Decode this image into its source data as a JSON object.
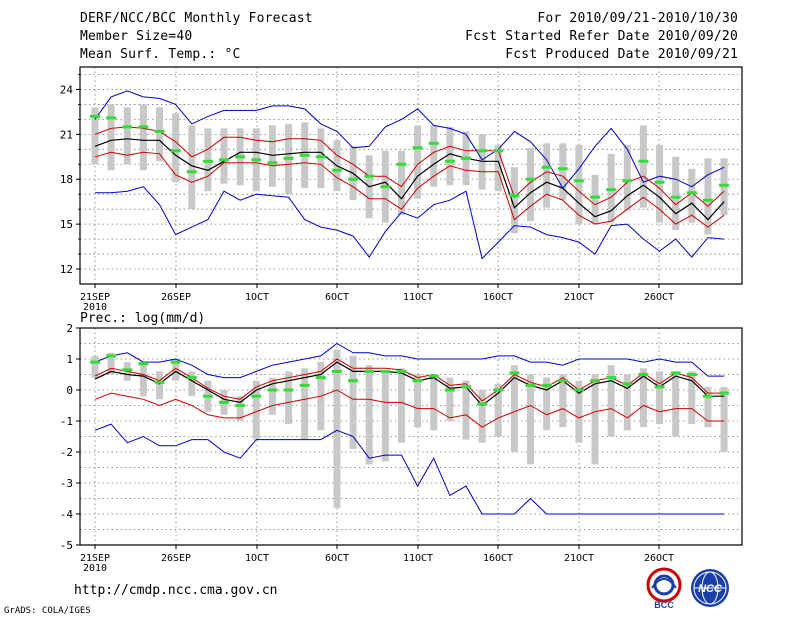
{
  "header": {
    "title": "DERF/NCC/BCC Monthly Forecast",
    "member_size": "Member Size=40",
    "variable": "Mean Surf. Temp.: °C",
    "forecast_period": "For 2010/09/21-2010/10/30",
    "started_refer": "Fcst Started Refer Date 2010/09/20",
    "produced": "Fcst Produced Date 2010/09/21"
  },
  "footer": {
    "url": "http://cmdp.ncc.cma.gov.cn",
    "grads": "GrADS: COLA/IGES",
    "logo_bcc": "BCC",
    "logo_ncc": "NCC"
  },
  "colors": {
    "spread": "#0000cc",
    "mean": "#000000",
    "stdband": "#cc0000",
    "range_bar": "#c8c8c8",
    "marker": "#33dd33"
  },
  "x_axis_labels": [
    "21SEP",
    "26SEP",
    "1OCT",
    "6OCT",
    "11OCT",
    "16OCT",
    "21OCT",
    "26OCT"
  ],
  "x_axis_year": "2010",
  "chart_data": [
    {
      "type": "line",
      "name": "temperature",
      "ylabel": "Mean Surf. Temp.: °C",
      "ylim": [
        11,
        25.5
      ],
      "yticks": [
        12,
        15,
        18,
        21,
        24
      ],
      "x": [
        1,
        2,
        3,
        4,
        5,
        6,
        7,
        8,
        9,
        10,
        11,
        12,
        13,
        14,
        15,
        16,
        17,
        18,
        19,
        20,
        21,
        22,
        23,
        24,
        25,
        26,
        27,
        28,
        29,
        30,
        31,
        32,
        33,
        34,
        35,
        36,
        37,
        38,
        39,
        40
      ],
      "series": [
        {
          "name": "max",
          "values": [
            17.1,
            17.1,
            17.2,
            17.5,
            16.3,
            14.3,
            14.8,
            15.3,
            17.2,
            16.6,
            17.0,
            16.9,
            16.8,
            15.3,
            14.8,
            14.6,
            14.2,
            12.8,
            14.5,
            15.8,
            15.4,
            16.3,
            16.6,
            17.2,
            12.7,
            13.8,
            14.9,
            14.8,
            14.3,
            14.1,
            13.8,
            13.0,
            14.9,
            15.0,
            14.0,
            13.2,
            14.0,
            12.8,
            14.1,
            14.0
          ]
        },
        {
          "name": "min",
          "values": [
            22.0,
            23.5,
            23.9,
            23.5,
            23.4,
            23.0,
            21.7,
            22.2,
            22.6,
            22.6,
            22.6,
            22.9,
            22.9,
            22.7,
            21.7,
            21.2,
            20.1,
            20.2,
            21.5,
            22.0,
            22.7,
            21.6,
            21.4,
            21.0,
            19.3,
            20.0,
            21.2,
            20.5,
            19.3,
            17.4,
            18.7,
            20.2,
            21.4,
            20.0,
            17.8,
            18.2,
            18.0,
            17.5,
            18.3,
            18.8
          ]
        },
        {
          "name": "mean",
          "values": [
            20.2,
            20.6,
            20.7,
            20.6,
            20.6,
            19.6,
            18.9,
            18.6,
            19.2,
            19.8,
            19.8,
            19.6,
            19.7,
            19.8,
            19.8,
            18.9,
            18.4,
            17.5,
            17.8,
            16.7,
            18.2,
            19.0,
            19.7,
            19.4,
            19.2,
            19.2,
            16.1,
            17.1,
            17.8,
            17.4,
            16.4,
            15.5,
            15.9,
            16.9,
            17.6,
            16.8,
            15.7,
            16.4,
            15.3,
            16.5
          ]
        },
        {
          "name": "upper",
          "values": [
            21.0,
            21.4,
            21.5,
            21.4,
            21.2,
            20.5,
            19.5,
            20.0,
            20.8,
            20.8,
            20.6,
            20.5,
            20.7,
            20.7,
            20.6,
            19.6,
            19.0,
            18.2,
            18.2,
            17.5,
            19.0,
            19.8,
            20.2,
            19.9,
            19.9,
            19.9,
            16.8,
            17.8,
            18.5,
            18.2,
            17.2,
            16.3,
            16.8,
            17.8,
            18.2,
            17.4,
            16.3,
            17.1,
            16.2,
            17.2
          ]
        },
        {
          "name": "lower",
          "values": [
            19.5,
            19.8,
            19.6,
            19.8,
            19.7,
            18.3,
            17.8,
            18.2,
            19.1,
            19.1,
            19.1,
            18.9,
            19.0,
            19.1,
            19.0,
            18.1,
            17.5,
            16.7,
            16.7,
            16.0,
            17.4,
            18.2,
            18.9,
            18.6,
            18.5,
            18.5,
            15.3,
            16.2,
            17.0,
            16.6,
            15.6,
            15.0,
            15.2,
            16.0,
            16.8,
            16.0,
            15.0,
            15.6,
            14.8,
            15.6
          ]
        },
        {
          "name": "bar_high",
          "values": [
            22.8,
            23.0,
            22.8,
            23.0,
            22.8,
            22.4,
            21.6,
            21.4,
            21.4,
            21.4,
            21.4,
            21.6,
            21.7,
            21.8,
            21.4,
            20.6,
            20.2,
            19.6,
            19.9,
            19.9,
            21.6,
            21.6,
            21.5,
            21.2,
            21.0,
            20.3,
            18.8,
            20.1,
            20.4,
            20.4,
            20.3,
            18.3,
            19.7,
            20.3,
            21.6,
            20.3,
            19.5,
            18.7,
            19.4,
            19.4
          ]
        },
        {
          "name": "bar_low",
          "values": [
            19.0,
            18.6,
            19.0,
            18.6,
            19.2,
            17.8,
            16.0,
            17.2,
            17.7,
            17.6,
            17.2,
            17.5,
            17.0,
            17.4,
            17.4,
            17.2,
            16.6,
            15.4,
            15.1,
            15.6,
            16.7,
            17.5,
            17.6,
            17.6,
            17.3,
            17.2,
            14.4,
            15.2,
            16.1,
            16.6,
            15.0,
            15.0,
            15.1,
            15.9,
            16.1,
            15.1,
            14.6,
            15.1,
            14.3,
            15.6
          ]
        },
        {
          "name": "marker",
          "values": [
            22.2,
            22.1,
            21.5,
            21.5,
            21.2,
            19.9,
            18.5,
            19.2,
            19.3,
            19.5,
            19.3,
            19.1,
            19.4,
            19.6,
            19.5,
            18.6,
            18.0,
            18.2,
            17.5,
            19.0,
            20.1,
            20.4,
            19.2,
            19.4,
            19.9,
            19.9,
            16.9,
            18.0,
            18.8,
            18.7,
            17.9,
            16.8,
            17.3,
            17.9,
            19.2,
            17.8,
            16.8,
            17.1,
            16.6,
            17.6
          ]
        }
      ]
    },
    {
      "type": "line",
      "name": "precipitation",
      "ylabel": "Prec.: log(mm/d)",
      "ylim": [
        -5,
        2
      ],
      "yticks": [
        -5,
        -4,
        -3,
        -2,
        -1,
        0,
        1,
        2
      ],
      "x": [
        1,
        2,
        3,
        4,
        5,
        6,
        7,
        8,
        9,
        10,
        11,
        12,
        13,
        14,
        15,
        16,
        17,
        18,
        19,
        20,
        21,
        22,
        23,
        24,
        25,
        26,
        27,
        28,
        29,
        30,
        31,
        32,
        33,
        34,
        35,
        36,
        37,
        38,
        39,
        40
      ],
      "series": [
        {
          "name": "min",
          "values": [
            -1.3,
            -1.1,
            -1.7,
            -1.5,
            -1.8,
            -1.8,
            -1.6,
            -1.6,
            -2.0,
            -2.2,
            -1.6,
            -1.6,
            -1.6,
            -1.6,
            -1.6,
            -1.3,
            -1.5,
            -2.2,
            -2.1,
            -2.1,
            -3.1,
            -2.2,
            -3.4,
            -3.1,
            -4.0,
            -4.0,
            -4.0,
            -3.5,
            -4.0,
            -4.0,
            -4.0,
            -4.0,
            -4.0,
            -4.0,
            -4.0,
            -4.0,
            -4.0,
            -4.0,
            -4.0,
            -4.0
          ]
        },
        {
          "name": "max",
          "values": [
            0.9,
            1.1,
            1.2,
            0.9,
            0.9,
            1.0,
            0.8,
            0.5,
            0.4,
            0.4,
            0.6,
            0.8,
            0.9,
            1.0,
            1.1,
            1.5,
            1.2,
            1.2,
            1.1,
            1.1,
            1.0,
            1.0,
            1.0,
            1.0,
            1.0,
            1.1,
            1.1,
            0.9,
            0.9,
            0.8,
            1.0,
            1.0,
            1.0,
            1.0,
            0.9,
            1.0,
            0.9,
            0.9,
            0.45,
            0.45
          ]
        },
        {
          "name": "mean",
          "values": [
            0.35,
            0.6,
            0.5,
            0.45,
            0.2,
            0.6,
            0.3,
            0.0,
            -0.3,
            -0.4,
            0.0,
            0.2,
            0.3,
            0.4,
            0.5,
            0.9,
            0.6,
            0.6,
            0.6,
            0.55,
            0.3,
            0.4,
            0.05,
            0.1,
            -0.5,
            -0.1,
            0.4,
            0.15,
            0.0,
            0.3,
            -0.1,
            0.2,
            0.3,
            0.05,
            0.45,
            0.1,
            0.45,
            0.3,
            -0.2,
            -0.2
          ]
        },
        {
          "name": "upper",
          "values": [
            0.45,
            0.7,
            0.6,
            0.5,
            0.3,
            0.7,
            0.4,
            0.05,
            -0.2,
            -0.3,
            0.1,
            0.3,
            0.4,
            0.5,
            0.6,
            1.0,
            0.7,
            0.7,
            0.7,
            0.65,
            0.4,
            0.5,
            0.15,
            0.2,
            -0.35,
            0.0,
            0.5,
            0.25,
            0.1,
            0.4,
            0.0,
            0.3,
            0.4,
            0.15,
            0.55,
            0.2,
            0.55,
            0.4,
            -0.1,
            -0.1
          ]
        },
        {
          "name": "lower",
          "values": [
            -0.3,
            -0.1,
            -0.2,
            -0.3,
            -0.5,
            -0.3,
            -0.5,
            -0.8,
            -0.9,
            -0.9,
            -0.7,
            -0.5,
            -0.4,
            -0.3,
            -0.2,
            0.0,
            -0.3,
            -0.3,
            -0.4,
            -0.4,
            -0.6,
            -0.6,
            -0.9,
            -0.8,
            -1.2,
            -0.9,
            -0.7,
            -0.5,
            -0.8,
            -0.6,
            -0.9,
            -0.7,
            -0.6,
            -0.9,
            -0.5,
            -0.7,
            -0.6,
            -0.6,
            -1.0,
            -1.0
          ]
        },
        {
          "name": "bar_high",
          "values": [
            1.1,
            1.2,
            0.9,
            0.8,
            0.6,
            1.0,
            0.6,
            0.3,
            0.0,
            -0.2,
            0.3,
            0.4,
            0.6,
            0.7,
            0.9,
            1.3,
            1.1,
            0.8,
            0.6,
            0.7,
            0.5,
            0.5,
            0.4,
            0.3,
            0.0,
            0.2,
            0.8,
            0.5,
            0.4,
            0.5,
            0.3,
            0.5,
            0.8,
            0.5,
            0.7,
            0.6,
            0.6,
            0.6,
            0.1,
            0.1
          ]
        },
        {
          "name": "bar_low",
          "values": [
            0.4,
            0.5,
            0.3,
            -0.2,
            -0.3,
            0.3,
            -0.2,
            -0.7,
            -0.8,
            -1.0,
            -1.6,
            -0.8,
            -1.1,
            -1.6,
            -1.3,
            -3.8,
            -1.9,
            -2.4,
            -2.3,
            -1.7,
            -1.2,
            -1.3,
            -1.0,
            -1.6,
            -1.7,
            -1.5,
            -2.0,
            -2.4,
            -1.3,
            -1.2,
            -1.7,
            -2.4,
            -1.5,
            -1.3,
            -1.2,
            -1.1,
            -1.5,
            -1.1,
            -1.2,
            -2.0
          ]
        },
        {
          "name": "marker",
          "values": [
            0.9,
            1.1,
            0.65,
            0.85,
            0.25,
            0.9,
            0.4,
            -0.2,
            -0.4,
            -0.5,
            -0.2,
            0.0,
            0.0,
            0.15,
            0.4,
            0.6,
            0.3,
            0.6,
            0.6,
            0.6,
            0.3,
            0.45,
            0.0,
            0.1,
            -0.45,
            0.0,
            0.55,
            0.15,
            0.15,
            0.3,
            0.0,
            0.3,
            0.4,
            0.2,
            0.5,
            0.1,
            0.55,
            0.5,
            -0.2,
            -0.1
          ]
        }
      ]
    }
  ]
}
